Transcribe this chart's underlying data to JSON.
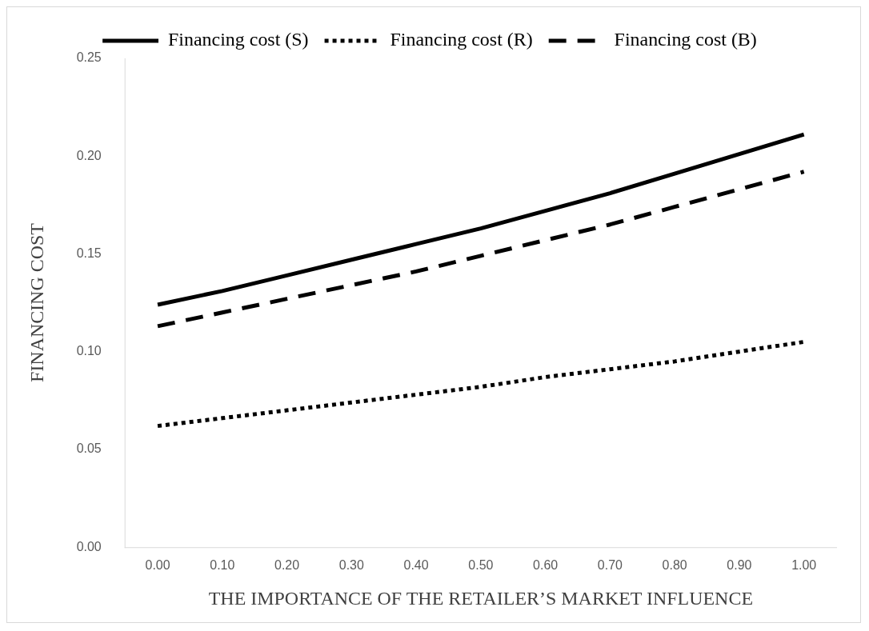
{
  "chart_data": {
    "type": "line",
    "xlabel": "THE IMPORTANCE OF THE RETAILER’S MARKET INFLUENCE",
    "ylabel": "FINANCING COST",
    "categories": [
      "0.00",
      "0.10",
      "0.20",
      "0.30",
      "0.40",
      "0.50",
      "0.60",
      "0.70",
      "0.80",
      "0.90",
      "1.00"
    ],
    "series": [
      {
        "name": "Financing cost (S)",
        "color": "#000000",
        "line_style": "solid",
        "values": [
          0.124,
          0.131,
          0.139,
          0.147,
          0.155,
          0.163,
          0.172,
          0.181,
          0.191,
          0.201,
          0.211
        ]
      },
      {
        "name": "Financing cost (R)",
        "color": "#000000",
        "line_style": "dotted",
        "values": [
          0.062,
          0.066,
          0.07,
          0.074,
          0.078,
          0.082,
          0.087,
          0.091,
          0.095,
          0.1,
          0.105
        ]
      },
      {
        "name": "Financing cost (B)",
        "color": "#000000",
        "line_style": "dashed",
        "values": [
          0.113,
          0.12,
          0.127,
          0.134,
          0.141,
          0.149,
          0.157,
          0.165,
          0.174,
          0.183,
          0.192
        ]
      }
    ],
    "ylim": [
      0,
      0.25
    ],
    "yticks": [
      {
        "value": 0,
        "label": "0.00"
      },
      {
        "value": 0.05,
        "label": "0.05"
      },
      {
        "value": 0.1,
        "label": "0.10"
      },
      {
        "value": 0.15,
        "label": "0.15"
      },
      {
        "value": 0.2,
        "label": "0.20"
      },
      {
        "value": 0.25,
        "label": "0.25"
      }
    ],
    "grid": false,
    "legend": "top",
    "marker": "none"
  }
}
